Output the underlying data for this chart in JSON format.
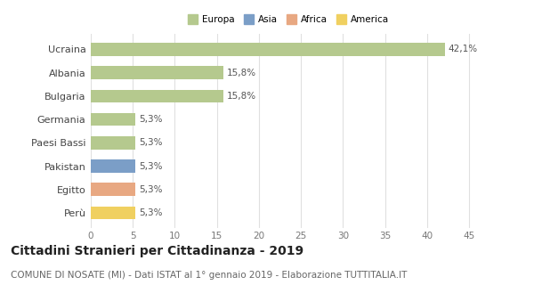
{
  "categories": [
    "Ucraina",
    "Albania",
    "Bulgaria",
    "Germania",
    "Paesi Bassi",
    "Pakistan",
    "Egitto",
    "Perù"
  ],
  "values": [
    42.1,
    15.8,
    15.8,
    5.3,
    5.3,
    5.3,
    5.3,
    5.3
  ],
  "labels": [
    "42,1%",
    "15,8%",
    "15,8%",
    "5,3%",
    "5,3%",
    "5,3%",
    "5,3%",
    "5,3%"
  ],
  "bar_colors": [
    "#b5c98e",
    "#b5c98e",
    "#b5c98e",
    "#b5c98e",
    "#b5c98e",
    "#7b9ec7",
    "#e8a882",
    "#f0d060"
  ],
  "legend_labels": [
    "Europa",
    "Asia",
    "Africa",
    "America"
  ],
  "legend_colors": [
    "#b5c98e",
    "#7b9ec7",
    "#e8a882",
    "#f0d060"
  ],
  "xlim": [
    0,
    47
  ],
  "xticks": [
    0,
    5,
    10,
    15,
    20,
    25,
    30,
    35,
    40,
    45
  ],
  "title": "Cittadini Stranieri per Cittadinanza - 2019",
  "subtitle": "COMUNE DI NOSATE (MI) - Dati ISTAT al 1° gennaio 2019 - Elaborazione TUTTITALIA.IT",
  "title_fontsize": 10,
  "subtitle_fontsize": 7.5,
  "label_fontsize": 7.5,
  "tick_fontsize": 7.5,
  "ytick_fontsize": 8,
  "background_color": "#ffffff",
  "grid_color": "#e0e0e0"
}
